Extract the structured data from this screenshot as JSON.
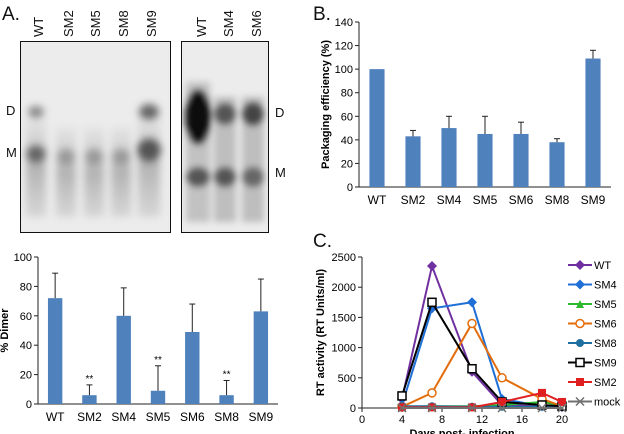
{
  "panels": {
    "a": "A.",
    "b": "B.",
    "c": "C."
  },
  "gel": {
    "left_lanes": [
      "WT",
      "SM2",
      "SM5",
      "SM8",
      "SM9"
    ],
    "right_lanes": [
      "WT",
      "SM4",
      "SM6"
    ],
    "left_band_labels": [
      "D",
      "M"
    ],
    "right_band_labels": [
      "D",
      "M"
    ]
  },
  "chart_data": [
    {
      "id": "dimer",
      "type": "bar",
      "ylabel": "% Dimer",
      "categories": [
        "WT",
        "SM2",
        "SM4",
        "SM5",
        "SM6",
        "SM8",
        "SM9"
      ],
      "values": [
        72,
        6,
        60,
        9,
        49,
        6,
        63
      ],
      "errors": [
        17,
        7,
        19,
        17,
        19,
        10,
        22
      ],
      "annotations": [
        "",
        "**",
        "",
        "**",
        "",
        "**",
        ""
      ],
      "ylim": [
        0,
        100
      ],
      "yticks": [
        0,
        20,
        40,
        60,
        80,
        100
      ],
      "color": "#4f81bd"
    },
    {
      "id": "packaging",
      "type": "bar",
      "ylabel": "Packaging efficiency (%)",
      "categories": [
        "WT",
        "SM2",
        "SM4",
        "SM5",
        "SM6",
        "SM8",
        "SM9"
      ],
      "values": [
        100,
        43,
        50,
        45,
        45,
        38,
        109
      ],
      "errors": [
        0,
        5,
        10,
        15,
        10,
        3,
        7
      ],
      "ylim": [
        0,
        140
      ],
      "yticks": [
        0,
        20,
        40,
        60,
        80,
        100,
        120,
        140
      ],
      "color": "#4f81bd"
    },
    {
      "id": "rt",
      "type": "line",
      "ylabel": "RT activity (RT Units/ml)",
      "xlabel": "Days post- infection",
      "xlim": [
        0,
        20
      ],
      "xticks": [
        0,
        4,
        8,
        12,
        16,
        20
      ],
      "ylim": [
        0,
        2500
      ],
      "yticks": [
        0,
        500,
        1000,
        1500,
        2000,
        2500
      ],
      "series": [
        {
          "name": "WT",
          "color": "#7030a0",
          "marker": "diamond",
          "x": [
            4,
            7,
            11,
            14,
            18,
            20
          ],
          "y": [
            150,
            2350,
            600,
            50,
            30,
            20
          ]
        },
        {
          "name": "SM4",
          "color": "#1f6fd6",
          "marker": "diamond",
          "x": [
            4,
            7,
            11,
            14,
            18,
            20
          ],
          "y": [
            50,
            1650,
            1750,
            150,
            30,
            20
          ]
        },
        {
          "name": "SM5",
          "color": "#2eb82e",
          "marker": "triangle",
          "x": [
            4,
            7,
            11,
            14,
            18,
            20
          ],
          "y": [
            20,
            30,
            30,
            50,
            100,
            50
          ]
        },
        {
          "name": "SM6",
          "color": "#e46c0a",
          "marker": "circle-open",
          "x": [
            4,
            7,
            11,
            14,
            18,
            20
          ],
          "y": [
            20,
            250,
            1400,
            500,
            150,
            30
          ]
        },
        {
          "name": "SM8",
          "color": "#1f6fa0",
          "marker": "circle",
          "x": [
            4,
            7,
            11,
            14,
            18,
            20
          ],
          "y": [
            30,
            30,
            20,
            20,
            20,
            20
          ]
        },
        {
          "name": "SM9",
          "color": "#000000",
          "marker": "square-open",
          "x": [
            4,
            7,
            11,
            14,
            18,
            20
          ],
          "y": [
            200,
            1750,
            650,
            100,
            50,
            30
          ]
        },
        {
          "name": "SM2",
          "color": "#e02020",
          "marker": "square",
          "x": [
            4,
            7,
            11,
            14,
            18,
            20
          ],
          "y": [
            10,
            10,
            10,
            100,
            250,
            100
          ]
        },
        {
          "name": "mock",
          "color": "#707070",
          "marker": "x",
          "x": [
            4,
            7,
            11,
            14,
            18,
            20
          ],
          "y": [
            0,
            0,
            0,
            0,
            0,
            0
          ]
        }
      ]
    }
  ]
}
